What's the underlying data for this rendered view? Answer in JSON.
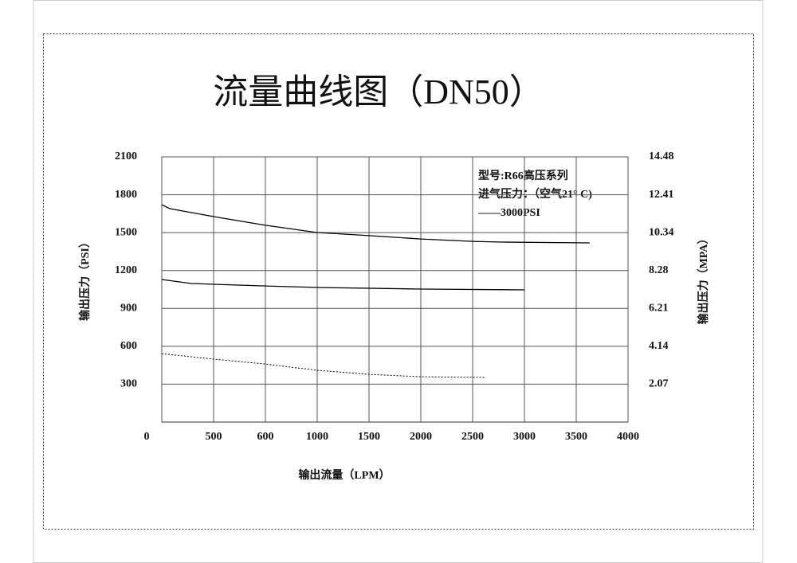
{
  "chart_data": {
    "type": "line",
    "title": "流量曲线图（DN50）",
    "x_label": "输出流量（LPM）",
    "y_label": "输出压力（PSI）",
    "y2_label": "输出压力（MPA）",
    "annotations": [
      "型号:R66高压系列",
      "进气压力：（空气21° C)",
      "——3000PSI"
    ],
    "xticks": [
      0,
      500,
      600,
      1000,
      1500,
      2000,
      2500,
      3000,
      3500,
      4000
    ],
    "ylim": [
      0,
      2100
    ],
    "yticks": [
      300,
      600,
      900,
      1200,
      1500,
      1800,
      2100
    ],
    "y2lim": [
      0,
      14.48
    ],
    "y2ticks": [
      2.07,
      4.14,
      6.21,
      8.28,
      10.34,
      12.41,
      14.48
    ],
    "grid": true,
    "series": [
      {
        "color": "#000000",
        "style": "solid",
        "x": [
          0,
          77,
          500,
          600,
          1000,
          1500,
          2000,
          2500,
          2784,
          3630
        ],
        "values": [
          1721,
          1690,
          1627,
          1558,
          1501,
          1476,
          1450,
          1431,
          1425,
          1419
        ]
      },
      {
        "color": "#000000",
        "style": "solid",
        "x": [
          0,
          285,
          500,
          600,
          1000,
          2000,
          3000
        ],
        "values": [
          1129,
          1097,
          1091,
          1078,
          1066,
          1053,
          1047
        ]
      },
      {
        "color": "#000000",
        "style": "dashed",
        "x": [
          0,
          500,
          600,
          1000,
          1500,
          2000,
          2630
        ],
        "values": [
          542,
          498,
          460,
          410,
          378,
          359,
          353
        ]
      }
    ]
  }
}
